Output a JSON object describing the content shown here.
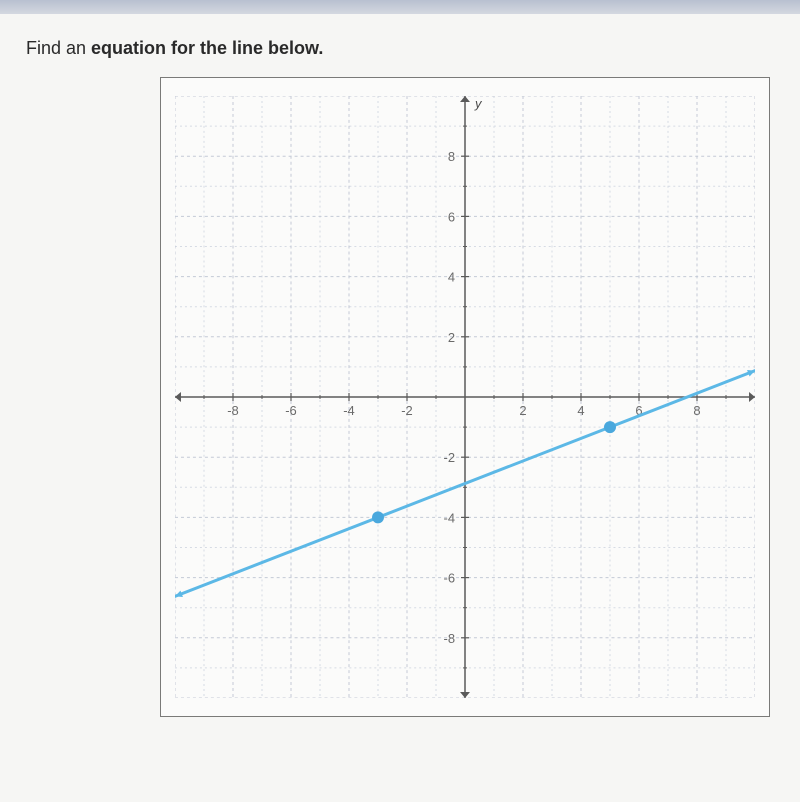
{
  "prompt_prefix": "Find an ",
  "prompt_bold": "equation for the line below.",
  "chart": {
    "type": "line",
    "background_color": "#fbfbfa",
    "border_color": "#7a7a78",
    "minor_grid_color": "#d6dbe4",
    "major_grid_color": "#c4cad6",
    "minor_dash": "2,3",
    "major_dash": "3,3",
    "axis_color": "#5a5a5a",
    "tick_label_color": "#6a6a6a",
    "tick_label_fontsize": 13,
    "axis_title_color": "#4a4a4a",
    "axis_title_fontsize": 13,
    "line_color": "#5cb8e6",
    "line_width": 3,
    "point_color": "#4aa8dd",
    "point_radius": 6,
    "arrow_color": "#5a5a5a",
    "xlim": [
      -10,
      10
    ],
    "ylim": [
      -10,
      10
    ],
    "major_tick_step": 2,
    "minor_tick_step": 1,
    "x_tick_labels": [
      -8,
      -6,
      -4,
      -2,
      2,
      4,
      6,
      8
    ],
    "y_tick_labels_pos": [
      2,
      4,
      6,
      8
    ],
    "y_tick_labels_neg": [
      -2,
      -4,
      -6,
      -8
    ],
    "y_axis_label": "y",
    "points": [
      {
        "x": -3,
        "y": -4
      },
      {
        "x": 5,
        "y": -1
      }
    ],
    "line_extent": {
      "x1": -10,
      "y1": -6.625,
      "x2": 10,
      "y2": 0.875
    },
    "aspect": 1.0
  }
}
